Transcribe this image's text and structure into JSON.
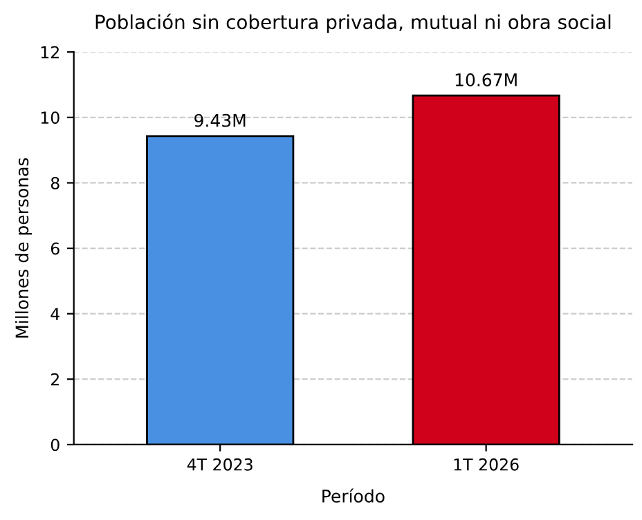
{
  "chart_data": {
    "type": "bar",
    "title": "Población sin cobertura privada, mutual ni obra social",
    "xlabel": "Período",
    "ylabel": "Millones de personas",
    "categories": [
      "4T 2023",
      "1T 2026"
    ],
    "values": [
      9.43,
      10.67
    ],
    "colors": [
      "#4a90e2",
      "#d0021b"
    ],
    "value_labels": [
      "9.43M",
      "10.67M"
    ],
    "ylim": [
      0,
      12
    ],
    "yticks": [
      0,
      2,
      4,
      6,
      8,
      10,
      12
    ],
    "grid": "y"
  }
}
